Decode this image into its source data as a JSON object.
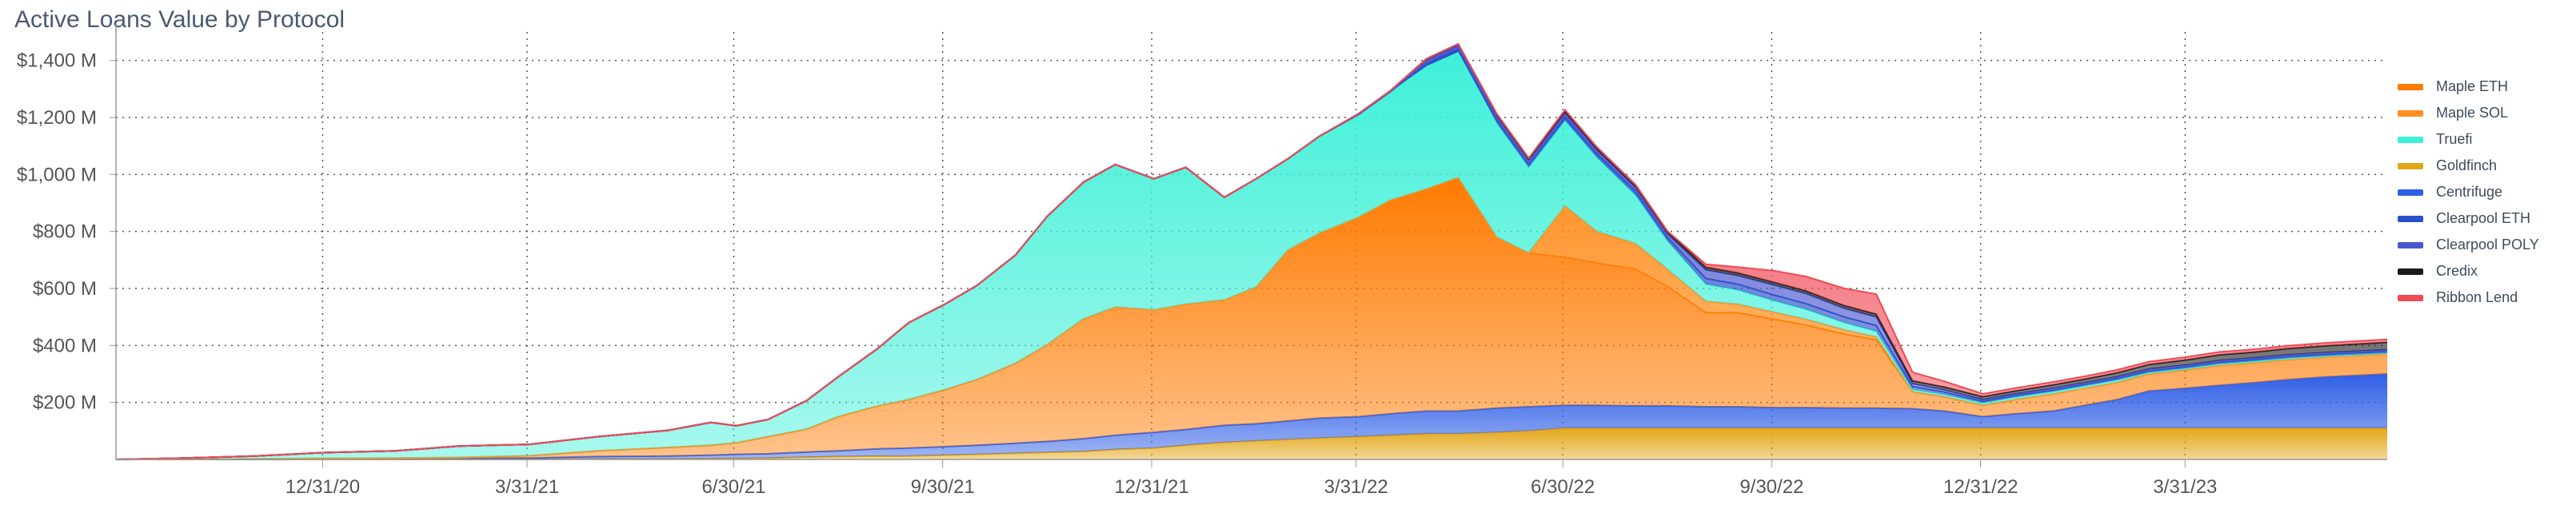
{
  "chart_data": {
    "type": "area",
    "title": "Active Loans Value by Protocol",
    "stacked": true,
    "y_tick_labels": [
      "$200 M",
      "$400 M",
      "$600 M",
      "$800 M",
      "$1,000 M",
      "$1,200 M",
      "$1,400 M"
    ],
    "y_ticks": [
      200,
      400,
      600,
      800,
      1000,
      1200,
      1400
    ],
    "ylim": [
      0,
      1500
    ],
    "x_tick_labels": [
      "12/31/20",
      "3/31/21",
      "6/30/21",
      "9/30/21",
      "12/31/21",
      "3/31/22",
      "6/30/22",
      "9/30/22",
      "12/31/22",
      "3/31/23"
    ],
    "x_ticks": [
      "2020-12-31",
      "2021-03-31",
      "2021-06-30",
      "2021-09-30",
      "2021-12-31",
      "2022-03-31",
      "2022-06-30",
      "2022-09-30",
      "2022-12-31",
      "2023-03-31"
    ],
    "xlim": [
      "2020-10-01",
      "2023-06-28"
    ],
    "grid": true,
    "legend_position": "right",
    "x": [
      "2020-10-01",
      "2020-11-01",
      "2020-12-01",
      "2021-01-01",
      "2021-02-01",
      "2021-03-01",
      "2021-04-01",
      "2021-05-01",
      "2021-06-01",
      "2021-06-20",
      "2021-07-01",
      "2021-07-15",
      "2021-08-01",
      "2021-08-15",
      "2021-09-01",
      "2021-09-15",
      "2021-10-01",
      "2021-10-15",
      "2021-11-01",
      "2021-11-15",
      "2021-12-01",
      "2021-12-15",
      "2022-01-01",
      "2022-01-15",
      "2022-02-01",
      "2022-02-15",
      "2022-03-01",
      "2022-03-15",
      "2022-04-01",
      "2022-04-15",
      "2022-05-01",
      "2022-05-15",
      "2022-06-01",
      "2022-06-15",
      "2022-07-01",
      "2022-07-15",
      "2022-08-01",
      "2022-08-15",
      "2022-09-01",
      "2022-09-15",
      "2022-10-01",
      "2022-10-15",
      "2022-11-01",
      "2022-11-15",
      "2022-12-01",
      "2022-12-15",
      "2023-01-01",
      "2023-01-15",
      "2023-02-01",
      "2023-02-15",
      "2023-03-01",
      "2023-03-15",
      "2023-04-01",
      "2023-04-15",
      "2023-05-01",
      "2023-05-15",
      "2023-06-01",
      "2023-06-28"
    ],
    "series": [
      {
        "name": "Goldfinch",
        "color": "#e3a618",
        "values": [
          0,
          0,
          0,
          0,
          0,
          0,
          0,
          2,
          2,
          3,
          4,
          5,
          8,
          10,
          12,
          12,
          15,
          18,
          22,
          25,
          28,
          35,
          40,
          50,
          60,
          65,
          70,
          75,
          80,
          85,
          90,
          90,
          95,
          100,
          110,
          110,
          110,
          110,
          110,
          110,
          110,
          110,
          110,
          110,
          110,
          110,
          110,
          110,
          110,
          110,
          110,
          110,
          110,
          110,
          110,
          110,
          110,
          110
        ]
      },
      {
        "name": "Centrifuge",
        "color": "#2f5fe6",
        "values": [
          0,
          0,
          0,
          2,
          2,
          3,
          5,
          8,
          10,
          12,
          14,
          15,
          18,
          20,
          25,
          28,
          30,
          32,
          35,
          38,
          45,
          50,
          55,
          55,
          60,
          60,
          65,
          70,
          70,
          75,
          80,
          80,
          85,
          85,
          80,
          80,
          78,
          78,
          75,
          75,
          72,
          72,
          70,
          70,
          68,
          60,
          40,
          50,
          60,
          80,
          100,
          130,
          140,
          150,
          160,
          170,
          180,
          190
        ]
      },
      {
        "name": "Maple ETH",
        "color": "#ff7a00",
        "values": [
          0,
          0,
          2,
          2,
          3,
          4,
          8,
          20,
          30,
          35,
          40,
          60,
          80,
          120,
          150,
          170,
          200,
          230,
          280,
          340,
          420,
          450,
          430,
          440,
          440,
          480,
          600,
          650,
          700,
          750,
          780,
          820,
          600,
          540,
          520,
          500,
          480,
          420,
          330,
          330,
          310,
          290,
          260,
          240,
          60,
          50,
          40,
          50,
          60,
          60,
          60,
          60,
          65,
          70,
          70,
          70,
          70,
          70
        ]
      },
      {
        "name": "Maple SOL",
        "color": "#ff8f1f",
        "values": [
          0,
          0,
          0,
          0,
          0,
          0,
          0,
          0,
          0,
          0,
          0,
          0,
          0,
          0,
          0,
          0,
          0,
          0,
          0,
          0,
          0,
          0,
          0,
          0,
          0,
          0,
          0,
          0,
          0,
          0,
          0,
          0,
          0,
          0,
          180,
          110,
          90,
          60,
          40,
          30,
          25,
          20,
          15,
          10,
          0,
          0,
          0,
          0,
          0,
          0,
          0,
          0,
          0,
          0,
          0,
          0,
          0,
          0
        ]
      },
      {
        "name": "Truefi",
        "color": "#3ef0d8",
        "values": [
          0,
          5,
          10,
          20,
          25,
          40,
          40,
          50,
          60,
          80,
          60,
          60,
          100,
          140,
          200,
          270,
          300,
          330,
          380,
          450,
          480,
          500,
          460,
          480,
          360,
          380,
          320,
          340,
          360,
          380,
          430,
          440,
          400,
          300,
          300,
          260,
          170,
          100,
          60,
          50,
          40,
          35,
          25,
          20,
          8,
          8,
          8,
          8,
          8,
          8,
          8,
          5,
          5,
          5,
          5,
          5,
          3,
          3
        ]
      },
      {
        "name": "Clearpool ETH",
        "color": "#2b4fc9",
        "values": [
          0,
          0,
          0,
          0,
          0,
          0,
          0,
          0,
          0,
          0,
          0,
          0,
          0,
          0,
          0,
          0,
          0,
          0,
          0,
          0,
          0,
          0,
          0,
          0,
          0,
          0,
          0,
          0,
          0,
          0,
          10,
          12,
          12,
          12,
          14,
          14,
          14,
          12,
          20,
          20,
          20,
          20,
          20,
          20,
          10,
          8,
          6,
          6,
          6,
          6,
          6,
          6,
          6,
          6,
          6,
          6,
          6,
          6
        ]
      },
      {
        "name": "Clearpool POLY",
        "color": "#4a58d0",
        "values": [
          0,
          0,
          0,
          0,
          0,
          0,
          0,
          0,
          0,
          0,
          0,
          0,
          0,
          0,
          0,
          0,
          0,
          0,
          0,
          0,
          0,
          0,
          0,
          0,
          0,
          0,
          0,
          0,
          0,
          0,
          12,
          12,
          12,
          12,
          12,
          12,
          12,
          12,
          30,
          30,
          35,
          35,
          30,
          30,
          10,
          8,
          6,
          6,
          6,
          6,
          6,
          6,
          6,
          6,
          6,
          6,
          6,
          6
        ]
      },
      {
        "name": "Credix",
        "color": "#1a1a1a",
        "values": [
          0,
          0,
          0,
          0,
          0,
          0,
          0,
          0,
          0,
          0,
          0,
          0,
          0,
          0,
          0,
          0,
          0,
          0,
          0,
          0,
          0,
          0,
          0,
          0,
          0,
          0,
          0,
          0,
          3,
          3,
          4,
          4,
          8,
          8,
          10,
          10,
          10,
          10,
          10,
          10,
          10,
          10,
          10,
          10,
          10,
          10,
          10,
          10,
          12,
          12,
          14,
          16,
          18,
          20,
          20,
          22,
          24,
          26
        ]
      },
      {
        "name": "Ribbon Lend",
        "color": "#f04a55",
        "values": [
          0,
          0,
          0,
          0,
          0,
          0,
          0,
          0,
          0,
          0,
          0,
          0,
          0,
          0,
          0,
          0,
          0,
          0,
          0,
          0,
          0,
          0,
          0,
          0,
          0,
          0,
          0,
          0,
          0,
          0,
          0,
          0,
          0,
          0,
          0,
          0,
          0,
          0,
          10,
          20,
          40,
          50,
          60,
          70,
          30,
          20,
          10,
          10,
          10,
          10,
          10,
          10,
          10,
          10,
          10,
          10,
          10,
          10
        ]
      }
    ],
    "legend_order": [
      "Maple ETH",
      "Maple SOL",
      "Truefi",
      "Goldfinch",
      "Centrifuge",
      "Clearpool ETH",
      "Clearpool POLY",
      "Credix",
      "Ribbon Lend"
    ]
  }
}
